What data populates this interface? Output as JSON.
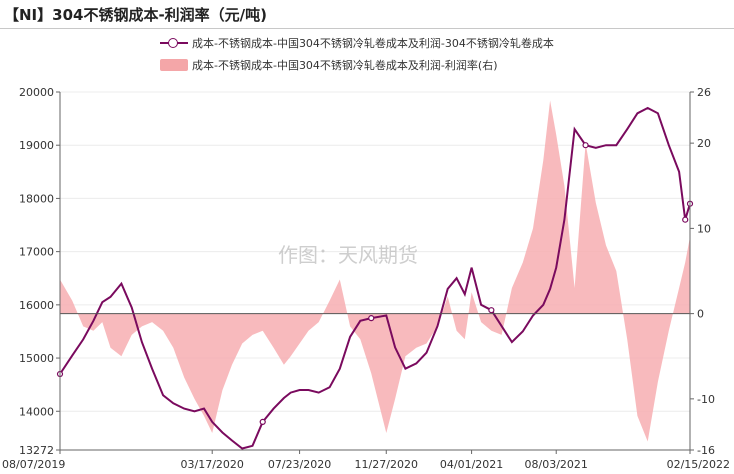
{
  "title": "【NI】304不锈钢成本-利润率（元/吨)",
  "watermark": "作图：天风期货",
  "chart_data": {
    "type": "line",
    "series": [
      {
        "name": "成本-不锈钢成本-中国304不锈钢冷轧卷成本及利润-304不锈钢冷轧卷成本",
        "kind": "line",
        "axis": "left",
        "color": "#7a0a5e",
        "x": [
          "2019-08-07",
          "2019-08-25",
          "2019-09-10",
          "2019-09-25",
          "2019-10-08",
          "2019-10-20",
          "2019-11-05",
          "2019-11-20",
          "2019-12-05",
          "2019-12-20",
          "2020-01-05",
          "2020-01-20",
          "2020-02-05",
          "2020-02-20",
          "2020-03-05",
          "2020-03-17",
          "2020-04-01",
          "2020-04-15",
          "2020-04-30",
          "2020-05-15",
          "2020-05-30",
          "2020-06-15",
          "2020-06-30",
          "2020-07-10",
          "2020-07-23",
          "2020-08-05",
          "2020-08-20",
          "2020-09-05",
          "2020-09-20",
          "2020-10-05",
          "2020-10-20",
          "2020-11-05",
          "2020-11-27",
          "2020-12-10",
          "2020-12-25",
          "2021-01-10",
          "2021-01-25",
          "2021-02-10",
          "2021-02-25",
          "2021-03-10",
          "2021-03-22",
          "2021-04-01",
          "2021-04-15",
          "2021-04-30",
          "2021-05-15",
          "2021-05-30",
          "2021-06-15",
          "2021-06-30",
          "2021-07-15",
          "2021-07-25",
          "2021-08-03",
          "2021-08-15",
          "2021-08-30",
          "2021-09-15",
          "2021-09-30",
          "2021-10-15",
          "2021-10-30",
          "2021-11-15",
          "2021-11-30",
          "2021-12-15",
          "2021-12-30",
          "2022-01-15",
          "2022-01-30",
          "2022-02-08",
          "2022-02-15"
        ],
        "values": [
          14700,
          15050,
          15350,
          15700,
          16050,
          16150,
          16400,
          15950,
          15300,
          14800,
          14300,
          14150,
          14050,
          14000,
          14050,
          13800,
          13600,
          13450,
          13300,
          13350,
          13800,
          14050,
          14250,
          14350,
          14400,
          14400,
          14350,
          14450,
          14800,
          15400,
          15700,
          15750,
          15800,
          15200,
          14800,
          14900,
          15100,
          15600,
          16300,
          16500,
          16200,
          16700,
          16000,
          15900,
          15600,
          15300,
          15500,
          15800,
          16000,
          16300,
          16700,
          17600,
          19300,
          19000,
          18950,
          19000,
          19000,
          19300,
          19600,
          19700,
          19600,
          19000,
          18500,
          17600,
          17900
        ]
      },
      {
        "name": "成本-不锈钢成本-中国304不锈钢冷轧卷成本及利润-利润率(右)",
        "kind": "area",
        "axis": "right",
        "color": "#f7aeb2",
        "x": [
          "2019-08-07",
          "2019-08-25",
          "2019-09-10",
          "2019-09-25",
          "2019-10-08",
          "2019-10-20",
          "2019-11-05",
          "2019-11-20",
          "2019-12-05",
          "2019-12-20",
          "2020-01-05",
          "2020-01-20",
          "2020-02-05",
          "2020-02-20",
          "2020-03-05",
          "2020-03-17",
          "2020-04-01",
          "2020-04-15",
          "2020-04-30",
          "2020-05-15",
          "2020-05-30",
          "2020-06-15",
          "2020-06-30",
          "2020-07-10",
          "2020-07-23",
          "2020-08-05",
          "2020-08-20",
          "2020-09-05",
          "2020-09-20",
          "2020-10-05",
          "2020-10-20",
          "2020-11-05",
          "2020-11-27",
          "2020-12-10",
          "2020-12-25",
          "2021-01-10",
          "2021-01-25",
          "2021-02-10",
          "2021-02-25",
          "2021-03-10",
          "2021-03-22",
          "2021-04-01",
          "2021-04-15",
          "2021-04-30",
          "2021-05-15",
          "2021-05-30",
          "2021-06-15",
          "2021-06-30",
          "2021-07-15",
          "2021-07-25",
          "2021-08-03",
          "2021-08-15",
          "2021-08-30",
          "2021-09-15",
          "2021-09-30",
          "2021-10-15",
          "2021-10-30",
          "2021-11-15",
          "2021-11-30",
          "2021-12-15",
          "2021-12-30",
          "2022-01-15",
          "2022-01-30",
          "2022-02-08",
          "2022-02-15"
        ],
        "values": [
          4.0,
          1.5,
          -1.5,
          -2.0,
          -1.0,
          -4.0,
          -5.0,
          -2.5,
          -1.5,
          -1.0,
          -2.0,
          -4.0,
          -7.5,
          -10.0,
          -12.0,
          -14.0,
          -9.0,
          -6.0,
          -3.5,
          -2.5,
          -2.0,
          -4.0,
          -6.0,
          -5.0,
          -3.5,
          -2.0,
          -1.0,
          1.5,
          4.0,
          -1.5,
          -3.0,
          -7.0,
          -14.0,
          -10.0,
          -5.0,
          -4.0,
          -3.5,
          -1.5,
          2.0,
          -2.0,
          -3.0,
          2.5,
          -1.0,
          -2.0,
          -2.5,
          3.0,
          6.0,
          10.0,
          18.0,
          25.0,
          21.0,
          15.0,
          3.0,
          20.0,
          13.0,
          8.0,
          5.0,
          -3.0,
          -12.0,
          -15.0,
          -8.0,
          -2.0,
          3.0,
          6.0,
          9.0
        ]
      }
    ],
    "x_ticks": [
      "08/07/2019",
      "03/17/2020",
      "07/23/2020",
      "11/27/2020",
      "04/01/2021",
      "08/03/2021",
      "02/15/2022"
    ],
    "y_left_ticks": [
      13272,
      14000,
      15000,
      16000,
      17000,
      18000,
      19000,
      20000
    ],
    "y_right_ticks": [
      -16,
      -10,
      0,
      10,
      20,
      26
    ],
    "ylim_left": [
      13272,
      20000
    ],
    "ylim_right": [
      -16,
      26
    ],
    "legend_position": "top-right"
  }
}
